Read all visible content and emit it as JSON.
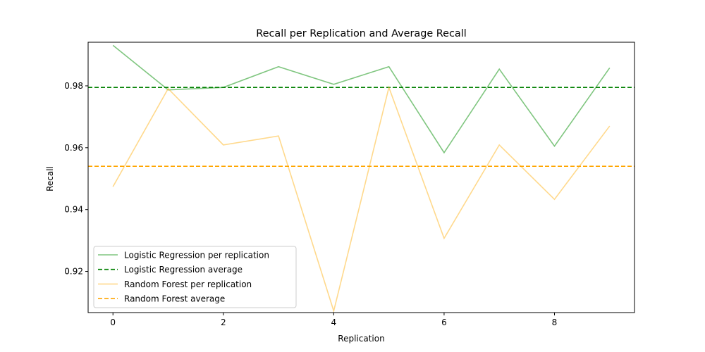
{
  "chart_data": {
    "type": "line",
    "title": "Recall per Replication and Average Recall",
    "xlabel": "Replication",
    "ylabel": "Recall",
    "xlim": [
      -0.45,
      9.45
    ],
    "ylim": [
      0.9067,
      0.9941
    ],
    "x": [
      0,
      1,
      2,
      3,
      4,
      5,
      6,
      7,
      8,
      9
    ],
    "xticks": [
      0,
      2,
      4,
      6,
      8
    ],
    "yticks": [
      0.92,
      0.94,
      0.96,
      0.98
    ],
    "grid": false,
    "legend_position": "lower-left",
    "series": [
      {
        "name": "Logistic Regression per replication",
        "kind": "line",
        "color": "#2ca02c",
        "values": [
          0.9931,
          0.9787,
          0.9795,
          0.9862,
          0.9805,
          0.9862,
          0.9584,
          0.9854,
          0.9605,
          0.9858
        ]
      },
      {
        "name": "Logistic Regression average",
        "kind": "hline",
        "color": "#008000",
        "value": 0.9795
      },
      {
        "name": "Random Forest per replication",
        "kind": "line",
        "color": "#ffbf40",
        "values": [
          0.9474,
          0.9791,
          0.9609,
          0.9638,
          0.9072,
          0.9795,
          0.9307,
          0.9609,
          0.9433,
          0.967
        ]
      },
      {
        "name": "Random Forest average",
        "kind": "hline",
        "color": "#ffa500",
        "value": 0.954
      }
    ]
  }
}
